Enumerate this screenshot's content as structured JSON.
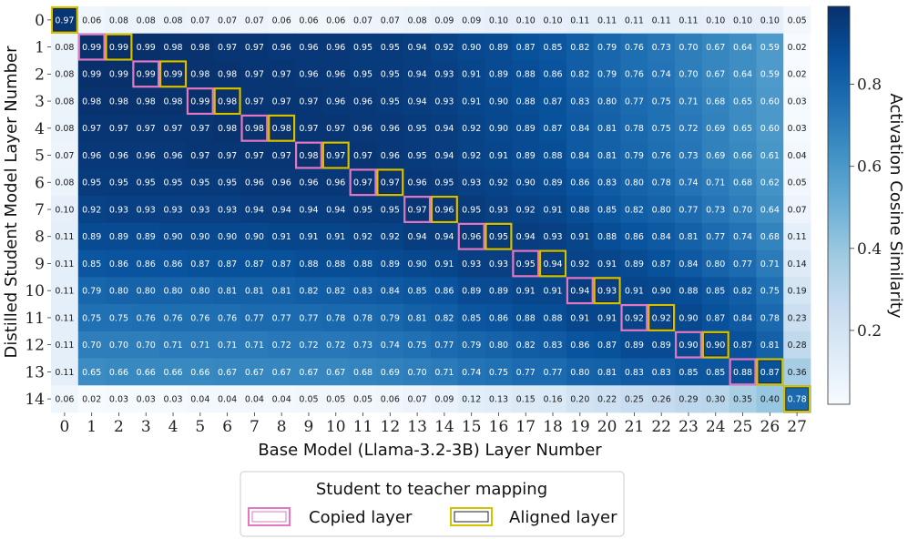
{
  "chart_data": {
    "type": "heatmap",
    "title": "",
    "xlabel": "Base Model (Llama-3.2-3B) Layer Number",
    "ylabel": "Distilled Student Model Layer Number",
    "colorbar_label": "Activation Cosine Similarity",
    "colorbar_ticks": [
      "0.2",
      "0.4",
      "0.6",
      "0.8"
    ],
    "colorbar_tick_values": [
      0.2,
      0.4,
      0.6,
      0.8
    ],
    "value_range": [
      0.02,
      0.99
    ],
    "colormap": [
      "#f7fbff",
      "#deebf7",
      "#c6dbef",
      "#9ecae1",
      "#6baed6",
      "#4292c6",
      "#2171b5",
      "#08519c",
      "#08306b"
    ],
    "x_tick_labels": [
      "0",
      "1",
      "2",
      "3",
      "4",
      "5",
      "6",
      "7",
      "8",
      "9",
      "10",
      "11",
      "12",
      "13",
      "14",
      "15",
      "16",
      "17",
      "18",
      "19",
      "20",
      "21",
      "22",
      "23",
      "24",
      "25",
      "26",
      "27"
    ],
    "y_tick_labels": [
      "0",
      "1",
      "2",
      "3",
      "4",
      "5",
      "6",
      "7",
      "8",
      "9",
      "10",
      "11",
      "12",
      "13",
      "14"
    ],
    "cells": [
      [
        "0.97",
        "0.06",
        "0.08",
        "0.08",
        "0.08",
        "0.07",
        "0.07",
        "0.07",
        "0.06",
        "0.06",
        "0.06",
        "0.07",
        "0.07",
        "0.08",
        "0.09",
        "0.09",
        "0.10",
        "0.10",
        "0.10",
        "0.11",
        "0.11",
        "0.11",
        "0.11",
        "0.11",
        "0.10",
        "0.10",
        "0.10",
        "0.05"
      ],
      [
        "0.08",
        "0.99",
        "0.99",
        "0.99",
        "0.98",
        "0.98",
        "0.97",
        "0.97",
        "0.96",
        "0.96",
        "0.96",
        "0.95",
        "0.95",
        "0.94",
        "0.92",
        "0.90",
        "0.89",
        "0.87",
        "0.85",
        "0.82",
        "0.79",
        "0.76",
        "0.73",
        "0.70",
        "0.67",
        "0.64",
        "0.59",
        "0.02"
      ],
      [
        "0.08",
        "0.99",
        "0.99",
        "0.99",
        "0.99",
        "0.98",
        "0.98",
        "0.97",
        "0.97",
        "0.96",
        "0.96",
        "0.95",
        "0.95",
        "0.94",
        "0.93",
        "0.91",
        "0.89",
        "0.88",
        "0.86",
        "0.82",
        "0.79",
        "0.76",
        "0.74",
        "0.70",
        "0.67",
        "0.64",
        "0.59",
        "0.02"
      ],
      [
        "0.08",
        "0.98",
        "0.98",
        "0.98",
        "0.98",
        "0.99",
        "0.98",
        "0.97",
        "0.97",
        "0.97",
        "0.96",
        "0.96",
        "0.95",
        "0.94",
        "0.93",
        "0.91",
        "0.90",
        "0.88",
        "0.87",
        "0.83",
        "0.80",
        "0.77",
        "0.75",
        "0.71",
        "0.68",
        "0.65",
        "0.60",
        "0.03"
      ],
      [
        "0.08",
        "0.97",
        "0.97",
        "0.97",
        "0.97",
        "0.97",
        "0.98",
        "0.98",
        "0.98",
        "0.97",
        "0.97",
        "0.96",
        "0.96",
        "0.95",
        "0.94",
        "0.92",
        "0.90",
        "0.89",
        "0.87",
        "0.84",
        "0.81",
        "0.78",
        "0.75",
        "0.72",
        "0.69",
        "0.65",
        "0.60",
        "0.03"
      ],
      [
        "0.07",
        "0.96",
        "0.96",
        "0.96",
        "0.96",
        "0.97",
        "0.97",
        "0.97",
        "0.97",
        "0.98",
        "0.97",
        "0.97",
        "0.96",
        "0.95",
        "0.94",
        "0.92",
        "0.91",
        "0.89",
        "0.88",
        "0.84",
        "0.81",
        "0.79",
        "0.76",
        "0.73",
        "0.69",
        "0.66",
        "0.61",
        "0.04"
      ],
      [
        "0.08",
        "0.95",
        "0.95",
        "0.95",
        "0.95",
        "0.95",
        "0.95",
        "0.96",
        "0.96",
        "0.96",
        "0.96",
        "0.97",
        "0.97",
        "0.96",
        "0.95",
        "0.93",
        "0.92",
        "0.90",
        "0.89",
        "0.86",
        "0.83",
        "0.80",
        "0.78",
        "0.74",
        "0.71",
        "0.68",
        "0.62",
        "0.05"
      ],
      [
        "0.10",
        "0.92",
        "0.93",
        "0.93",
        "0.93",
        "0.93",
        "0.93",
        "0.94",
        "0.94",
        "0.94",
        "0.94",
        "0.95",
        "0.95",
        "0.97",
        "0.96",
        "0.95",
        "0.93",
        "0.92",
        "0.91",
        "0.88",
        "0.85",
        "0.82",
        "0.80",
        "0.77",
        "0.73",
        "0.70",
        "0.64",
        "0.07"
      ],
      [
        "0.11",
        "0.89",
        "0.89",
        "0.89",
        "0.90",
        "0.90",
        "0.90",
        "0.90",
        "0.91",
        "0.91",
        "0.91",
        "0.92",
        "0.92",
        "0.94",
        "0.94",
        "0.96",
        "0.95",
        "0.94",
        "0.93",
        "0.91",
        "0.88",
        "0.86",
        "0.84",
        "0.81",
        "0.77",
        "0.74",
        "0.68",
        "0.11"
      ],
      [
        "0.11",
        "0.85",
        "0.86",
        "0.86",
        "0.86",
        "0.87",
        "0.87",
        "0.87",
        "0.87",
        "0.88",
        "0.88",
        "0.88",
        "0.89",
        "0.90",
        "0.91",
        "0.93",
        "0.93",
        "0.95",
        "0.94",
        "0.92",
        "0.91",
        "0.89",
        "0.87",
        "0.84",
        "0.80",
        "0.77",
        "0.71",
        "0.14"
      ],
      [
        "0.11",
        "0.79",
        "0.80",
        "0.80",
        "0.80",
        "0.80",
        "0.81",
        "0.81",
        "0.81",
        "0.82",
        "0.82",
        "0.83",
        "0.84",
        "0.85",
        "0.86",
        "0.89",
        "0.89",
        "0.91",
        "0.91",
        "0.94",
        "0.93",
        "0.91",
        "0.90",
        "0.88",
        "0.85",
        "0.82",
        "0.75",
        "0.19"
      ],
      [
        "0.11",
        "0.75",
        "0.75",
        "0.76",
        "0.76",
        "0.76",
        "0.76",
        "0.77",
        "0.77",
        "0.77",
        "0.78",
        "0.78",
        "0.79",
        "0.81",
        "0.82",
        "0.85",
        "0.86",
        "0.88",
        "0.88",
        "0.91",
        "0.91",
        "0.92",
        "0.92",
        "0.90",
        "0.87",
        "0.84",
        "0.78",
        "0.23"
      ],
      [
        "0.11",
        "0.70",
        "0.70",
        "0.70",
        "0.71",
        "0.71",
        "0.71",
        "0.71",
        "0.72",
        "0.72",
        "0.72",
        "0.73",
        "0.74",
        "0.75",
        "0.77",
        "0.79",
        "0.80",
        "0.82",
        "0.83",
        "0.86",
        "0.87",
        "0.89",
        "0.89",
        "0.90",
        "0.90",
        "0.87",
        "0.81",
        "0.28"
      ],
      [
        "0.11",
        "0.65",
        "0.66",
        "0.66",
        "0.66",
        "0.66",
        "0.67",
        "0.67",
        "0.67",
        "0.67",
        "0.67",
        "0.68",
        "0.69",
        "0.70",
        "0.71",
        "0.74",
        "0.75",
        "0.77",
        "0.77",
        "0.80",
        "0.81",
        "0.83",
        "0.83",
        "0.85",
        "0.85",
        "0.88",
        "0.87",
        "0.36"
      ],
      [
        "0.06",
        "0.02",
        "0.03",
        "0.03",
        "0.03",
        "0.04",
        "0.04",
        "0.04",
        "0.04",
        "0.05",
        "0.05",
        "0.05",
        "0.06",
        "0.07",
        "0.09",
        "0.12",
        "0.13",
        "0.15",
        "0.16",
        "0.20",
        "0.22",
        "0.25",
        "0.26",
        "0.29",
        "0.30",
        "0.35",
        "0.40",
        "0.78"
      ]
    ],
    "aligned_layers": [
      [
        0,
        0
      ],
      [
        1,
        2
      ],
      [
        2,
        4
      ],
      [
        3,
        6
      ],
      [
        4,
        8
      ],
      [
        5,
        10
      ],
      [
        6,
        12
      ],
      [
        7,
        14
      ],
      [
        8,
        16
      ],
      [
        9,
        18
      ],
      [
        10,
        20
      ],
      [
        11,
        22
      ],
      [
        12,
        24
      ],
      [
        13,
        26
      ],
      [
        14,
        27
      ]
    ],
    "copied_layers": [
      [
        1,
        1
      ],
      [
        2,
        3
      ],
      [
        3,
        5
      ],
      [
        4,
        7
      ],
      [
        5,
        9
      ],
      [
        6,
        11
      ],
      [
        7,
        13
      ],
      [
        8,
        15
      ],
      [
        9,
        17
      ],
      [
        10,
        19
      ],
      [
        11,
        21
      ],
      [
        12,
        23
      ],
      [
        13,
        25
      ]
    ],
    "copied_color": "#e377c2",
    "aligned_color": "#d4c200",
    "grid": false,
    "legend": {
      "placement": "bottom-center",
      "title": "Student to teacher mapping",
      "items": [
        {
          "label": "Copied layer",
          "key": "copied"
        },
        {
          "label": "Aligned layer",
          "key": "aligned"
        }
      ]
    }
  }
}
